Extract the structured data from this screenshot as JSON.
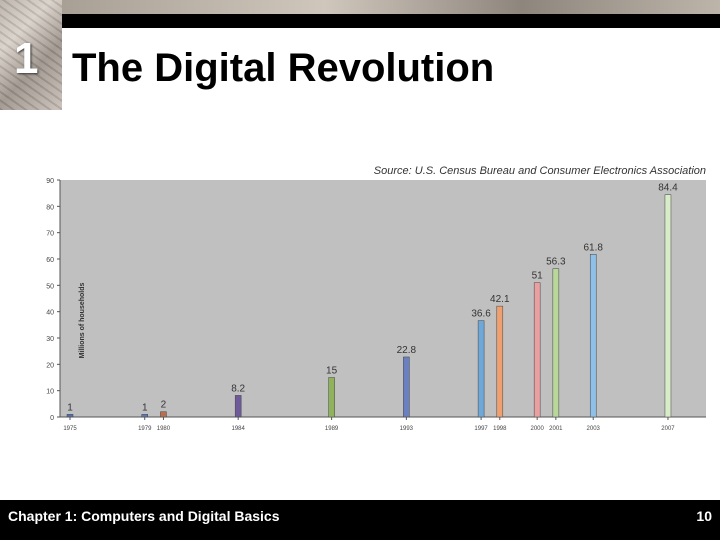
{
  "slide": {
    "chapter_number": "1",
    "title": "The Digital Revolution",
    "footer": "Chapter 1: Computers and Digital Basics",
    "page_number": "10"
  },
  "chart_data": {
    "type": "bar",
    "title": "Source: U.S. Census Bureau and Consumer Electronics Association",
    "xlabel": "",
    "ylabel": "Millions of households",
    "ylim": [
      0,
      90
    ],
    "yticks": [
      0,
      10,
      20,
      30,
      40,
      50,
      60,
      70,
      80,
      90
    ],
    "x_range": [
      1975,
      2008.5
    ],
    "grid": false,
    "categories": [
      "1975",
      "1979",
      "1980",
      "1984",
      "1989",
      "1993",
      "1997",
      "1998",
      "2000",
      "2001",
      "2003",
      "2007"
    ],
    "values": [
      1,
      1,
      2,
      8.2,
      15,
      22.8,
      36.6,
      42.1,
      51,
      56.3,
      61.8,
      84.4
    ],
    "labels": [
      "1",
      "1",
      "2",
      "8.2",
      "15",
      "22.8",
      "36.6",
      "42.1",
      "51",
      "56.3",
      "61.8",
      "84.4"
    ],
    "colors": [
      "#4f6fb5",
      "#5a7ab8",
      "#b86e50",
      "#6e5a9a",
      "#8fb35a",
      "#6a80c0",
      "#6ea8d8",
      "#f0a070",
      "#e8a0a0",
      "#b8d89a",
      "#8ec0e8",
      "#d8ecc8"
    ],
    "plot_bg": "#c0c0c0"
  }
}
